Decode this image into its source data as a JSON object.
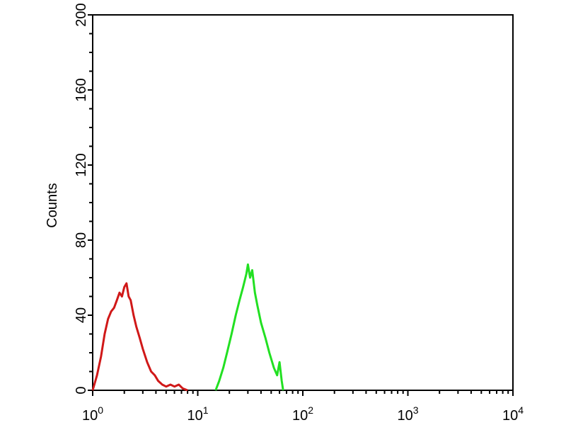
{
  "chart_data": {
    "type": "line",
    "title": "",
    "xlabel": "",
    "ylabel": "Counts",
    "xscale": "log",
    "xlim": [
      1,
      10000
    ],
    "ylim": [
      0,
      200
    ],
    "grid": false,
    "x_ticks": [
      {
        "base": "10",
        "exp": "0",
        "value": 1
      },
      {
        "base": "10",
        "exp": "1",
        "value": 10
      },
      {
        "base": "10",
        "exp": "2",
        "value": 100
      },
      {
        "base": "10",
        "exp": "3",
        "value": 1000
      },
      {
        "base": "10",
        "exp": "4",
        "value": 10000
      }
    ],
    "y_ticks": [
      "0",
      "40",
      "80",
      "120",
      "160",
      "200"
    ],
    "series": [
      {
        "color": "#d01818",
        "points": [
          [
            1.0,
            0
          ],
          [
            1.1,
            8
          ],
          [
            1.2,
            18
          ],
          [
            1.3,
            30
          ],
          [
            1.4,
            38
          ],
          [
            1.5,
            42
          ],
          [
            1.6,
            44
          ],
          [
            1.7,
            48
          ],
          [
            1.8,
            52
          ],
          [
            1.9,
            50
          ],
          [
            2.0,
            55
          ],
          [
            2.1,
            57
          ],
          [
            2.2,
            50
          ],
          [
            2.3,
            48
          ],
          [
            2.45,
            40
          ],
          [
            2.6,
            34
          ],
          [
            2.8,
            28
          ],
          [
            3.0,
            22
          ],
          [
            3.3,
            15
          ],
          [
            3.6,
            10
          ],
          [
            3.9,
            8
          ],
          [
            4.2,
            5
          ],
          [
            4.6,
            3
          ],
          [
            5.0,
            2
          ],
          [
            5.5,
            3
          ],
          [
            6.0,
            2
          ],
          [
            6.6,
            3
          ],
          [
            7.2,
            1
          ],
          [
            8.0,
            0
          ]
        ]
      },
      {
        "color": "#22e022",
        "points": [
          [
            14.8,
            0
          ],
          [
            16,
            5
          ],
          [
            17.5,
            12
          ],
          [
            19,
            20
          ],
          [
            21,
            30
          ],
          [
            23,
            40
          ],
          [
            25,
            48
          ],
          [
            27,
            55
          ],
          [
            29,
            62
          ],
          [
            30,
            67
          ],
          [
            31.5,
            60
          ],
          [
            33,
            64
          ],
          [
            35,
            52
          ],
          [
            37,
            45
          ],
          [
            40,
            36
          ],
          [
            44,
            28
          ],
          [
            48,
            20
          ],
          [
            53,
            12
          ],
          [
            57,
            8
          ],
          [
            60,
            15
          ],
          [
            63,
            5
          ],
          [
            65,
            0
          ]
        ]
      }
    ]
  }
}
